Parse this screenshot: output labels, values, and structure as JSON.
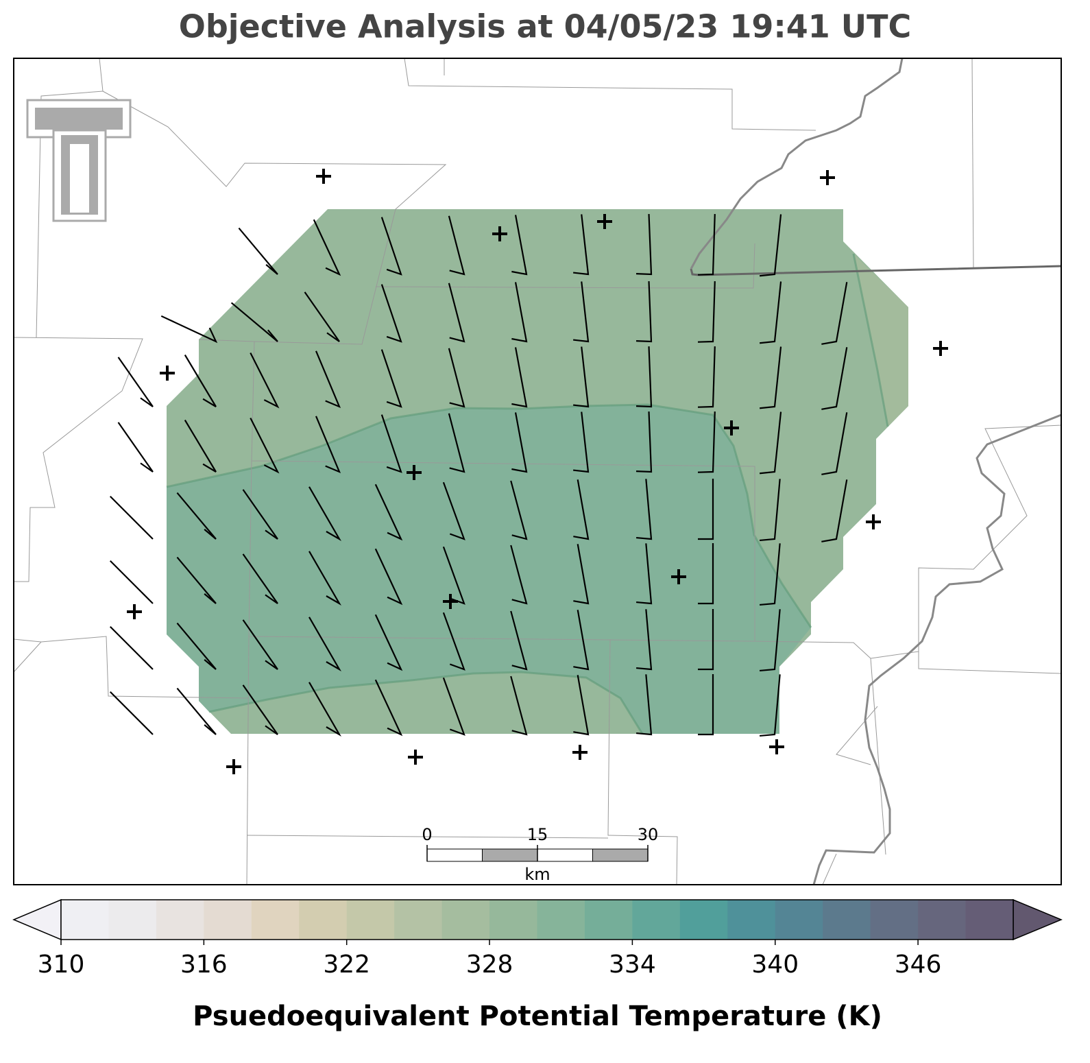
{
  "title": "Objective Analysis at 04/05/23 19:41 UTC",
  "colorbar": {
    "label": "Psuedoequivalent Potential Temperature (K)",
    "levels": [
      310,
      312,
      314,
      316,
      318,
      320,
      322,
      324,
      326,
      328,
      330,
      332,
      334,
      336,
      338,
      340,
      342,
      344,
      346,
      348,
      350
    ],
    "colors": [
      "#efeff3",
      "#ecebed",
      "#e8e3e0",
      "#e4dbd2",
      "#e0d4bf",
      "#d3cdb0",
      "#c4c8a9",
      "#b4c2a5",
      "#a5bd9f",
      "#96b89b",
      "#86b49a",
      "#75ae99",
      "#62a79a",
      "#519f9b",
      "#4f919a",
      "#548595",
      "#5c7a8d",
      "#636f85",
      "#66667d",
      "#655d76"
    ],
    "under_color": "#f2f1f6",
    "over_color": "#62586f",
    "ticks": [
      310,
      316,
      322,
      328,
      334,
      340,
      346
    ]
  },
  "scale_bar": {
    "ticks": [
      0,
      15,
      30
    ],
    "unit": "km"
  }
}
